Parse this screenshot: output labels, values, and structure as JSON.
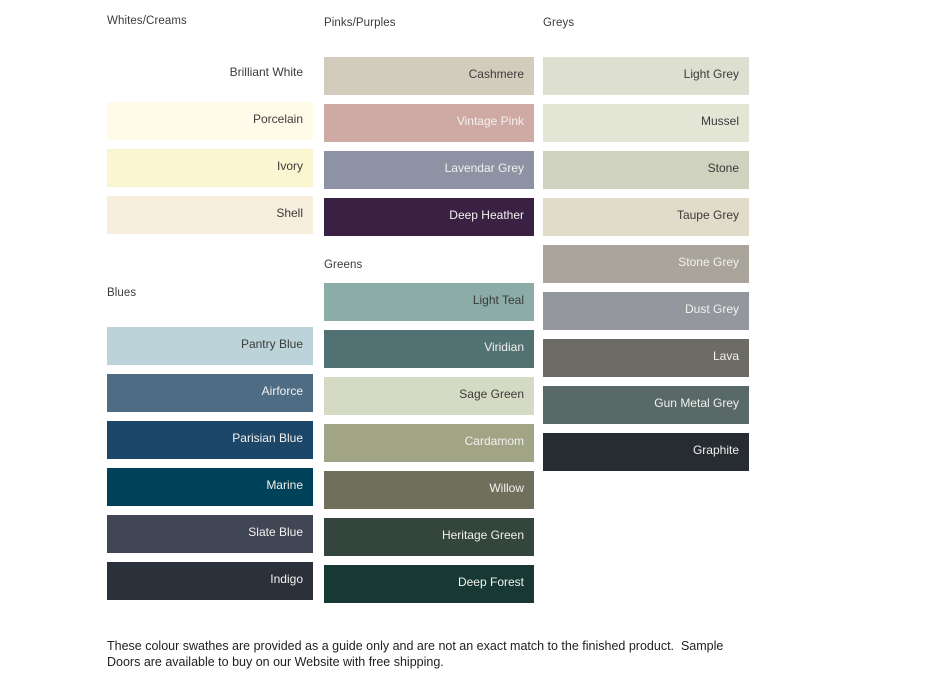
{
  "page": {
    "disclaimer": "These colour swathes are provided as a guide only and are not an exact match to the finished product.  Sample Doors are available to buy on our Website with free shipping."
  },
  "label_colors": {
    "dark": "#3b3b3b",
    "light": "#f2f1ee"
  },
  "columns": [
    {
      "groups": [
        {
          "title": "Whites/Creams",
          "swatches": [
            {
              "name": "Brilliant White",
              "color": "#ffffff",
              "label_style": "dark"
            },
            {
              "name": "Porcelain",
              "color": "#fffbe8",
              "label_style": "dark"
            },
            {
              "name": "Ivory",
              "color": "#fbf5d1",
              "label_style": "dark"
            },
            {
              "name": "Shell",
              "color": "#f7eedd",
              "label_style": "dark"
            }
          ]
        },
        {
          "title": "Blues",
          "swatches": [
            {
              "name": "Pantry Blue",
              "color": "#bcd3da",
              "label_style": "dark"
            },
            {
              "name": "Airforce",
              "color": "#4e6c84",
              "label_style": "light"
            },
            {
              "name": "Parisian Blue",
              "color": "#1d4769",
              "label_style": "light"
            },
            {
              "name": "Marine",
              "color": "#00425a",
              "label_style": "light"
            },
            {
              "name": "Slate Blue",
              "color": "#404653",
              "label_style": "light"
            },
            {
              "name": "Indigo",
              "color": "#2b313b",
              "label_style": "light"
            }
          ]
        }
      ]
    },
    {
      "groups": [
        {
          "title": "Pinks/Purples",
          "swatches": [
            {
              "name": "Cashmere",
              "color": "#d2ccbd",
              "label_style": "dark"
            },
            {
              "name": "Vintage Pink",
              "color": "#cfaaa5",
              "label_style": "light"
            },
            {
              "name": "Lavendar Grey",
              "color": "#8d92a4",
              "label_style": "light"
            },
            {
              "name": "Deep Heather",
              "color": "#3a2042",
              "label_style": "light"
            }
          ]
        },
        {
          "title": "Greens",
          "swatches": [
            {
              "name": "Light Teal",
              "color": "#8caca8",
              "label_style": "dark"
            },
            {
              "name": "Viridian",
              "color": "#517172",
              "label_style": "light"
            },
            {
              "name": "Sage Green",
              "color": "#d4dac3",
              "label_style": "dark"
            },
            {
              "name": "Cardamom",
              "color": "#a1a586",
              "label_style": "light"
            },
            {
              "name": "Willow",
              "color": "#706f5b",
              "label_style": "light"
            },
            {
              "name": "Heritage Green",
              "color": "#33453c",
              "label_style": "light"
            },
            {
              "name": "Deep Forest",
              "color": "#183933",
              "label_style": "light"
            }
          ]
        }
      ]
    },
    {
      "groups": [
        {
          "title": "Greys",
          "swatches": [
            {
              "name": "Light Grey",
              "color": "#dddfd0",
              "label_style": "dark"
            },
            {
              "name": "Mussel",
              "color": "#e3e5d5",
              "label_style": "dark"
            },
            {
              "name": "Stone",
              "color": "#cfd2bf",
              "label_style": "dark"
            },
            {
              "name": "Taupe Grey",
              "color": "#e1dbca",
              "label_style": "dark"
            },
            {
              "name": "Stone Grey",
              "color": "#a9a59b",
              "label_style": "light"
            },
            {
              "name": "Dust Grey",
              "color": "#95979e",
              "label_style": "light"
            },
            {
              "name": "Lava",
              "color": "#6c6c64",
              "label_style": "light"
            },
            {
              "name": "Gun Metal Grey",
              "color": "#596967",
              "label_style": "light"
            },
            {
              "name": "Graphite",
              "color": "#272c32",
              "label_style": "light"
            }
          ]
        }
      ]
    }
  ]
}
